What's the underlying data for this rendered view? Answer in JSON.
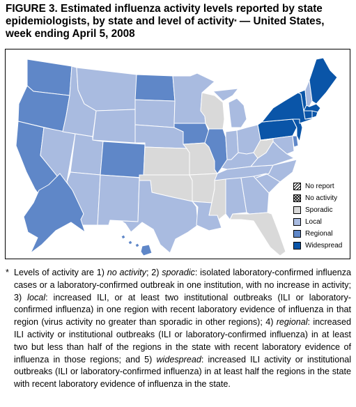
{
  "title": {
    "line1": "FIGURE 3. Estimated influenza activity levels reported by state",
    "line2_pre": "epidemiologists, by state and level of activity",
    "line2_mark": "*",
    "line2_post": " — United States,",
    "line3": "week ending April 5, 2008"
  },
  "colors": {
    "sporadic": "#d9d9d9",
    "local": "#a9bbe0",
    "regional": "#5f87c8",
    "widespread": "#0a55a8",
    "no_report": "#ffffff",
    "background": "#ffffff"
  },
  "legend": [
    {
      "key": "no_report",
      "label": "No report",
      "pattern": "hatch"
    },
    {
      "key": "no_activity",
      "label": "No activity",
      "pattern": "crosshatch"
    },
    {
      "key": "sporadic",
      "label": "Sporadic",
      "pattern": "solid"
    },
    {
      "key": "local",
      "label": "Local",
      "pattern": "solid"
    },
    {
      "key": "regional",
      "label": "Regional",
      "pattern": "solid"
    },
    {
      "key": "widespread",
      "label": "Widespread",
      "pattern": "solid"
    }
  ],
  "states": {
    "WA": "regional",
    "OR": "regional",
    "CA": "regional",
    "AK": "regional",
    "HI": "regional",
    "CO": "regional",
    "ND": "regional",
    "IA": "regional",
    "IL": "regional",
    "DE": "regional",
    "MT": "local",
    "ID": "local",
    "WY": "local",
    "NV": "local",
    "UT": "local",
    "AZ": "local",
    "NM": "local",
    "SD": "local",
    "NE": "local",
    "TX": "local",
    "MN": "local",
    "LA": "local",
    "AL": "local",
    "GA": "local",
    "SC": "local",
    "NC": "local",
    "TN": "local",
    "KY": "local",
    "IN": "local",
    "OH": "local",
    "MI": "local",
    "MD": "local",
    "VA": "local",
    "NH": "local",
    "KS": "sporadic",
    "OK": "sporadic",
    "MO": "sporadic",
    "AR": "sporadic",
    "MS": "sporadic",
    "WI": "sporadic",
    "WV": "sporadic",
    "FL": "sporadic",
    "ME": "widespread",
    "VT": "widespread",
    "NY": "widespread",
    "PA": "widespread",
    "MA": "widespread",
    "CT": "widespread",
    "RI": "widespread",
    "NJ": "widespread"
  },
  "footnote": {
    "mark": "*",
    "t1": "Levels of activity are 1) ",
    "no_activity": "no activity",
    "t2": "; 2) ",
    "sporadic": "sporadic",
    "t3": ": isolated laboratory-confirmed influenza cases or a laboratory-confirmed outbreak in one institution, with no increase in activity; 3) ",
    "local": "local",
    "t4": ": increased ILI, or at least two institutional outbreaks (ILI or laboratory-confirmed influenza) in one region with recent laboratory evidence of influenza in that region (virus activity no greater than sporadic in other regions); 4) ",
    "regional": "regional",
    "t5": ": increased ILI activity or institutional outbreaks (ILI or laboratory-confirmed influenza) in at least two but less than half of the regions in the state with recent laboratory evidence of influenza in those regions; and 5) ",
    "widespread": "widespread",
    "t6": ": increased ILI activity or institutional outbreaks (ILI or laboratory-confirmed influenza) in at least half the regions in the state with recent laboratory evidence of influenza in the state."
  }
}
